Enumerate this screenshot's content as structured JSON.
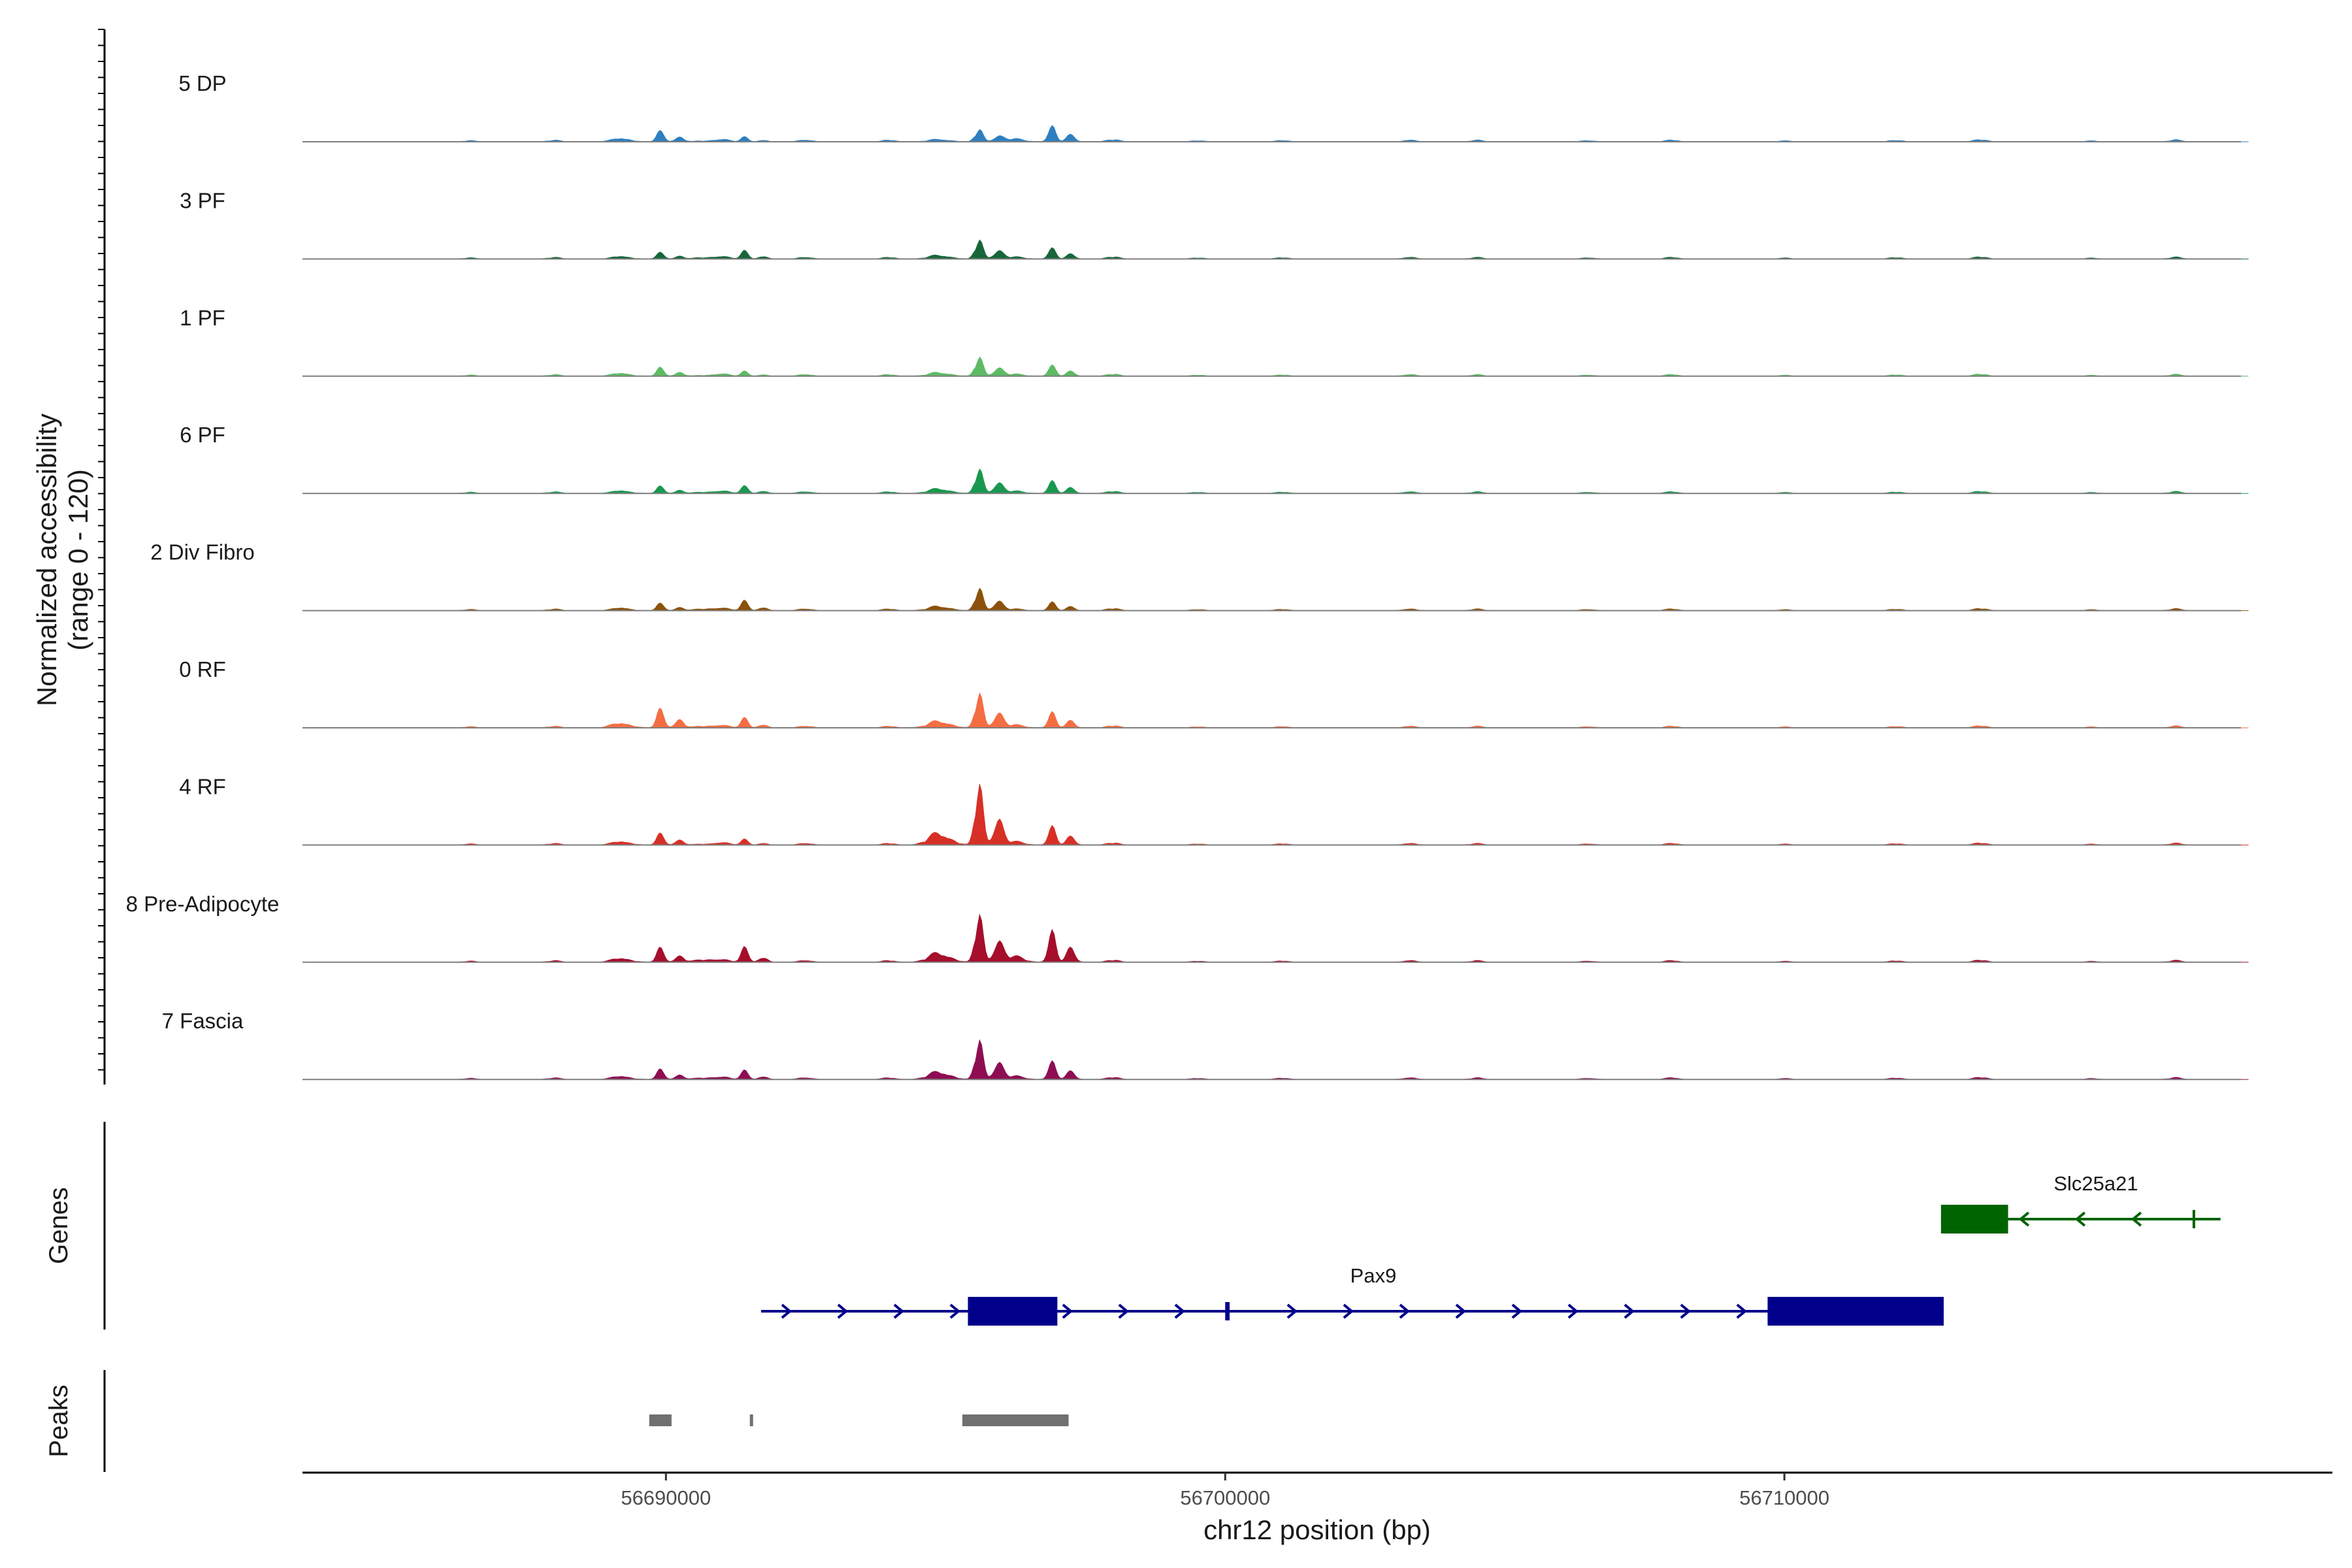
{
  "chart_data": {
    "type": "area",
    "chromosome": "chr12",
    "x_axis": {
      "title": "chr12 position (bp)",
      "range": [
        56683500,
        56719800
      ],
      "ticks": [
        56690000,
        56700000,
        56710000
      ],
      "tick_labels": [
        "56690000",
        "56700000",
        "56710000"
      ]
    },
    "y_axis": {
      "title_line1": "Normalized accessibility",
      "title_line2": "(range 0 - 120)",
      "range": [
        0,
        120
      ]
    },
    "tracks_section_title": "Genes",
    "peaks_section_title": "Peaks",
    "series": [
      {
        "name": "5 DP",
        "color": "#2E7FC0",
        "peaks": [
          [
            56689900,
            15
          ],
          [
            56691400,
            6
          ],
          [
            56695600,
            18
          ],
          [
            56696900,
            20
          ]
        ]
      },
      {
        "name": "3 PF",
        "color": "#17663A",
        "peaks": [
          [
            56689900,
            9
          ],
          [
            56691400,
            10
          ],
          [
            56695600,
            28
          ],
          [
            56696900,
            14
          ]
        ]
      },
      {
        "name": "1 PF",
        "color": "#5DBB63",
        "peaks": [
          [
            56689900,
            12
          ],
          [
            56691400,
            6
          ],
          [
            56695600,
            28
          ],
          [
            56696900,
            14
          ]
        ]
      },
      {
        "name": "6 PF",
        "color": "#1A9850",
        "peaks": [
          [
            56689900,
            10
          ],
          [
            56691400,
            9
          ],
          [
            56695600,
            36
          ],
          [
            56696900,
            16
          ]
        ]
      },
      {
        "name": "2 Div Fibro",
        "color": "#8C510A",
        "peaks": [
          [
            56689900,
            10
          ],
          [
            56691400,
            12
          ],
          [
            56695600,
            33
          ],
          [
            56696900,
            11
          ]
        ]
      },
      {
        "name": "0 RF",
        "color": "#F46D43",
        "peaks": [
          [
            56689900,
            26
          ],
          [
            56691400,
            12
          ],
          [
            56695600,
            51
          ],
          [
            56696900,
            20
          ]
        ]
      },
      {
        "name": "4 RF",
        "color": "#D73027",
        "peaks": [
          [
            56689900,
            16
          ],
          [
            56691400,
            7
          ],
          [
            56695600,
            90
          ],
          [
            56696900,
            24
          ]
        ]
      },
      {
        "name": "8 Pre-Adipocyte",
        "color": "#A50F2C",
        "peaks": [
          [
            56689900,
            20
          ],
          [
            56691400,
            18
          ],
          [
            56695600,
            70
          ],
          [
            56696900,
            40
          ]
        ]
      },
      {
        "name": "7 Fascia",
        "color": "#8E0D52",
        "peaks": [
          [
            56689900,
            14
          ],
          [
            56691400,
            11
          ],
          [
            56695600,
            58
          ],
          [
            56696900,
            23
          ]
        ]
      }
    ],
    "genes": [
      {
        "name": "Slc25a21",
        "strand": "-",
        "color": "#006400",
        "start": 56712800,
        "end": 56717800,
        "exons": [
          [
            56712800,
            56714000
          ],
          [
            56717300,
            56717330
          ]
        ]
      },
      {
        "name": "Pax9",
        "strand": "+",
        "color": "#00008B",
        "start": 56691700,
        "end": 56712850,
        "exons": [
          [
            56695400,
            56697000
          ],
          [
            56700000,
            56700080
          ],
          [
            56709700,
            56712850
          ]
        ]
      }
    ],
    "peak_regions": [
      [
        56689700,
        56690100
      ],
      [
        56691500,
        56691550
      ],
      [
        56695300,
        56697200
      ]
    ]
  }
}
